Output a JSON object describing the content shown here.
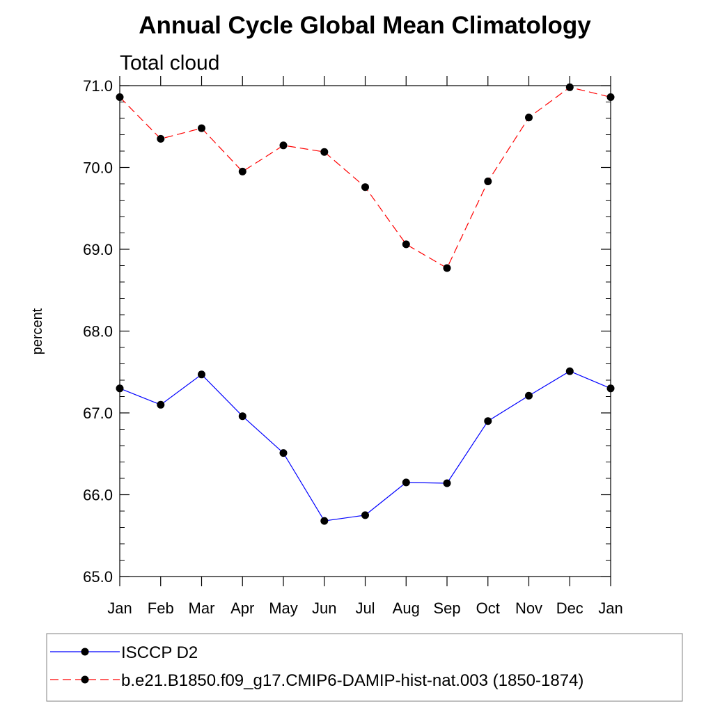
{
  "chart_data": {
    "type": "line",
    "title": "Annual Cycle Global Mean Climatology",
    "subtitle": "Total cloud",
    "xlabel": "",
    "ylabel": "percent",
    "categories": [
      "Jan",
      "Feb",
      "Mar",
      "Apr",
      "May",
      "Jun",
      "Jul",
      "Aug",
      "Sep",
      "Oct",
      "Nov",
      "Dec",
      "Jan"
    ],
    "ylim": [
      65.0,
      71.0
    ],
    "yticks": [
      "65.0",
      "66.0",
      "67.0",
      "68.0",
      "69.0",
      "70.0",
      "71.0"
    ],
    "grid": false,
    "legend_placement": "bottom",
    "series": [
      {
        "name": "ISCCP D2",
        "color": "#0000ff",
        "line_style": "solid",
        "marker": "filled-circle",
        "values": [
          67.3,
          67.1,
          67.47,
          66.96,
          66.51,
          65.68,
          65.75,
          66.15,
          66.14,
          66.9,
          67.21,
          67.51,
          67.3
        ]
      },
      {
        "name": "b.e21.B1850.f09_g17.CMIP6-DAMIP-hist-nat.003 (1850-1874)",
        "color": "#ff0000",
        "line_style": "dashed",
        "marker": "filled-circle",
        "values": [
          70.86,
          70.35,
          70.48,
          69.95,
          70.27,
          70.19,
          69.76,
          69.06,
          68.77,
          69.83,
          70.61,
          70.98,
          70.86
        ]
      }
    ]
  }
}
